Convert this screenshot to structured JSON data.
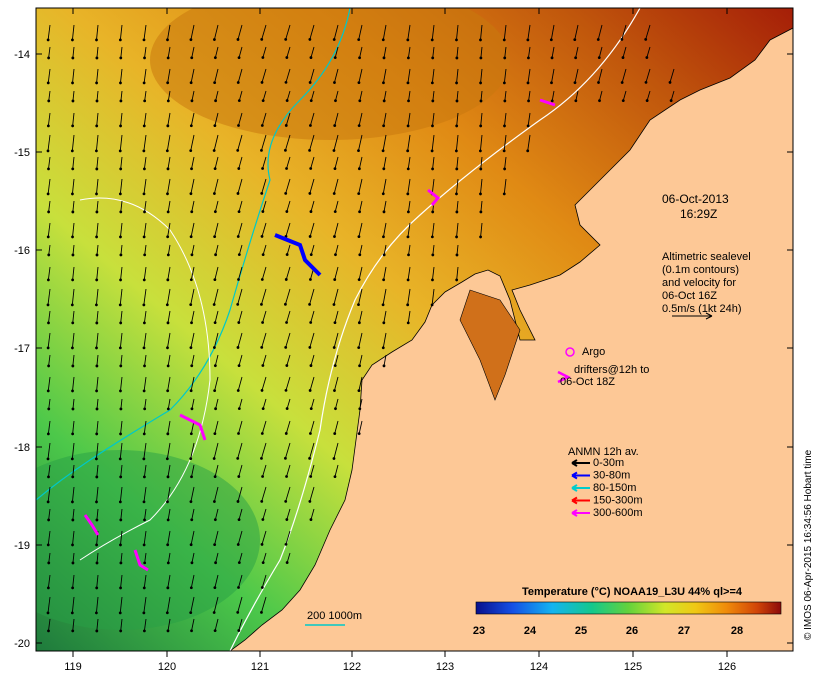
{
  "map": {
    "date": "06-Oct-2013",
    "time": "16:29Z",
    "sealevel_note": [
      "Altimetric sealevel",
      "(0.1m contours)",
      "and velocity for",
      "06-Oct 16Z",
      "0.5m/s (1kt 24h)"
    ],
    "argo_label": "Argo",
    "drifters_label": [
      "drifters@12h to",
      "06-Oct 18Z"
    ],
    "anmn_title": "ANMN 12h av.",
    "anmn_items": [
      {
        "label": "0-30m",
        "color": "#000000"
      },
      {
        "label": "30-80m",
        "color": "#0000ff"
      },
      {
        "label": "80-150m",
        "color": "#00cccc"
      },
      {
        "label": "150-300m",
        "color": "#ff0000"
      },
      {
        "label": "300-600m",
        "color": "#ff00ff"
      }
    ],
    "isobath_label": "200  1000m",
    "colorbar_title": "Temperature (°C) NOAA19_L3U 44% ql>=4",
    "colorbar_ticks": [
      "23",
      "24",
      "25",
      "26",
      "27",
      "28"
    ],
    "credit": "© IMOS 06-Apr-2015 16:34:56 Hobart time",
    "lon_ticks": [
      "119",
      "120",
      "121",
      "122",
      "123",
      "124",
      "125",
      "126"
    ],
    "lat_ticks": [
      "-14",
      "-15",
      "-16",
      "-17",
      "-18",
      "-19",
      "-20"
    ],
    "colors": {
      "land": "#fdc896",
      "sst_cold": "#1e7a3c",
      "sst_mid": "#c8e03c",
      "sst_warm": "#e08a14",
      "sst_hot": "#a51e08",
      "isobath_200": "#ffffff",
      "isobath_1000": "#00c8c8",
      "argo": "#ff00ff"
    }
  }
}
